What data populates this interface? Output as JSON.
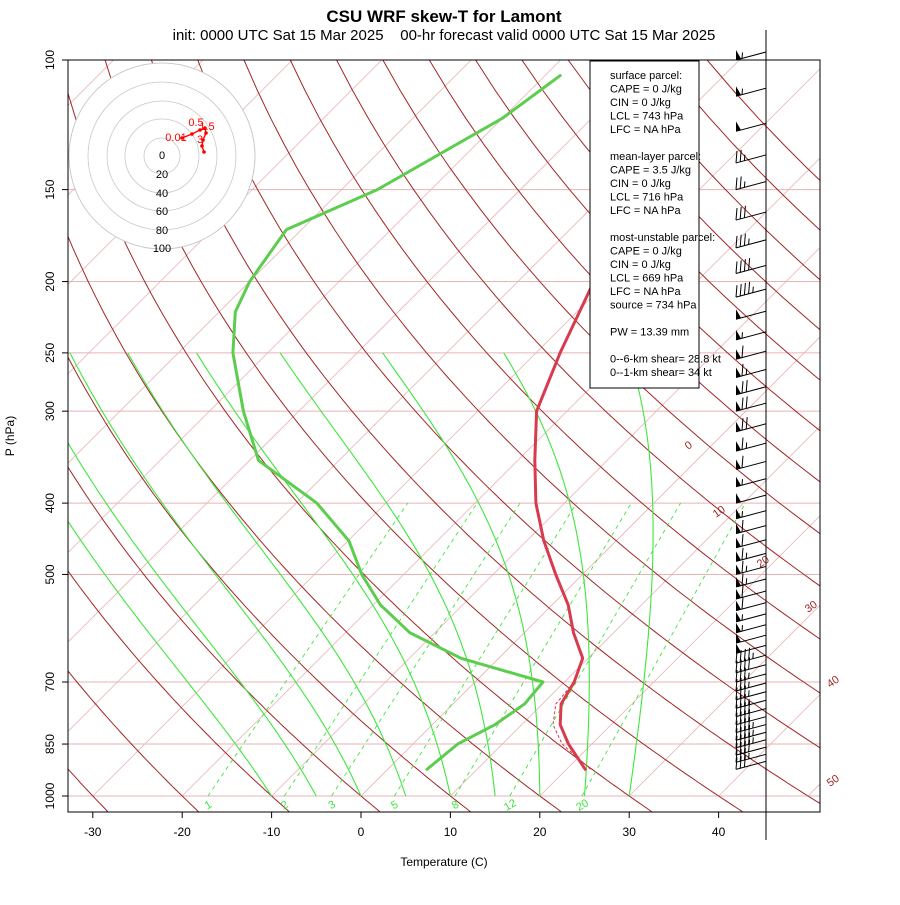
{
  "chart_data": {
    "type": "line",
    "title": "CSU WRF skew-T for Lamont",
    "subtitle": "init: 0000 UTC Sat 15 Mar 2025    00-hr forecast valid 0000 UTC Sat 15 Mar 2025",
    "xlabel": "Temperature (C)",
    "ylabel": "P (hPa)",
    "x_ticks": [
      -30,
      -20,
      -10,
      0,
      10,
      20,
      30,
      40
    ],
    "xlim": [
      -33,
      45
    ],
    "ylim": [
      1000,
      100
    ],
    "y_log_scale": true,
    "pressure_ticks": [
      100,
      150,
      200,
      250,
      300,
      400,
      500,
      700,
      850,
      1000
    ],
    "isotherm_labels": [
      "0",
      "10",
      "20",
      "30",
      "40",
      "50"
    ],
    "mixing_ratio_labels": [
      "1",
      "2",
      "3",
      "5",
      "8",
      "12",
      "20"
    ],
    "temperature_profile": {
      "color": "#d83a4e",
      "points": [
        [
          920,
          22.1
        ],
        [
          850,
          17.4
        ],
        [
          800,
          14.3
        ],
        [
          750,
          12.1
        ],
        [
          700,
          11.1
        ],
        [
          650,
          9.4
        ],
        [
          600,
          5.5
        ],
        [
          550,
          1.8
        ],
        [
          500,
          -3.0
        ],
        [
          450,
          -8.1
        ],
        [
          400,
          -13.2
        ],
        [
          350,
          -18.1
        ],
        [
          300,
          -23.4
        ],
        [
          250,
          -27.3
        ],
        [
          200,
          -31.5
        ],
        [
          150,
          -36.5
        ],
        [
          120,
          -41.3
        ],
        [
          105,
          -43.6
        ]
      ]
    },
    "parcel_profile": {
      "color": "#d83a4e",
      "style": "dashed",
      "points": [
        [
          920,
          22.7
        ],
        [
          850,
          16.7
        ],
        [
          800,
          13.5
        ],
        [
          750,
          11.5
        ],
        [
          700,
          11.1
        ]
      ]
    },
    "dewpoint_profile": {
      "color": "#5ccd4e",
      "points": [
        [
          920,
          4.4
        ],
        [
          850,
          5.0
        ],
        [
          800,
          7.0
        ],
        [
          750,
          8.0
        ],
        [
          700,
          7.6
        ],
        [
          650,
          -4.2
        ],
        [
          600,
          -12.8
        ],
        [
          550,
          -19.2
        ],
        [
          500,
          -24.7
        ],
        [
          450,
          -29.9
        ],
        [
          400,
          -37.7
        ],
        [
          350,
          -49.0
        ],
        [
          300,
          -56.2
        ],
        [
          250,
          -63.9
        ],
        [
          220,
          -68.2
        ],
        [
          200,
          -70.0
        ],
        [
          170,
          -71.7
        ],
        [
          150,
          -66.0
        ],
        [
          120,
          -60.0
        ],
        [
          105,
          -58.3
        ]
      ]
    },
    "hodograph": {
      "ring_labels": [
        "0",
        "20",
        "40",
        "60",
        "80",
        "100"
      ],
      "height_labels": [
        "0.5",
        "0.01",
        "3",
        "1.5"
      ],
      "trace_color": "#ff0000"
    },
    "parcel_info": {
      "surface_heading": "surface parcel:",
      "surface_lines": [
        "CAPE = 0 J/kg",
        "CIN = 0 J/kg",
        "LCL = 743 hPa",
        "LFC = NA hPa"
      ],
      "mean_heading": "mean-layer parcel:",
      "mean_lines": [
        "CAPE = 3.5 J/kg",
        "CIN = 0 J/kg",
        "LCL = 716 hPa",
        "LFC = NA hPa"
      ],
      "mu_heading": "most-unstable parcel:",
      "mu_lines": [
        "CAPE = 0 J/kg",
        "CIN = 0 J/kg",
        "LCL = 669 hPa",
        "LFC = NA hPa",
        "source = 734 hPa"
      ],
      "pw_line": "PW =  13.39 mm",
      "shear_lines": [
        "0--6-km shear= 28.8 kt",
        "0--1-km shear= 34 kt"
      ]
    },
    "wind_barbs": {
      "levels_hPa": [
        920,
        900,
        880,
        860,
        840,
        820,
        800,
        780,
        760,
        740,
        720,
        700,
        680,
        660,
        640,
        620,
        600,
        580,
        560,
        540,
        520,
        500,
        480,
        460,
        440,
        420,
        400,
        380,
        360,
        340,
        320,
        300,
        285,
        270,
        255,
        240,
        225,
        210,
        195,
        180,
        165,
        150,
        138,
        125,
        112,
        100
      ],
      "speeds_kt": [
        30,
        35,
        40,
        45,
        45,
        45,
        40,
        40,
        35,
        35,
        35,
        35,
        40,
        45,
        50,
        50,
        55,
        55,
        60,
        60,
        65,
        65,
        65,
        60,
        60,
        55,
        50,
        55,
        60,
        65,
        70,
        70,
        70,
        65,
        60,
        55,
        50,
        45,
        40,
        35,
        30,
        25,
        25,
        50,
        55,
        55
      ]
    }
  }
}
